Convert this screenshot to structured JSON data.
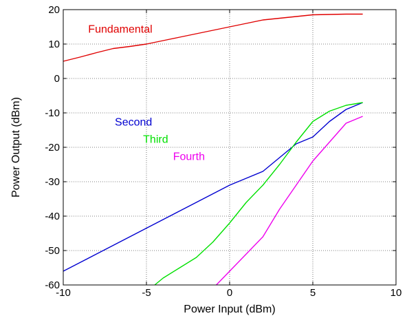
{
  "chart_data": {
    "type": "line",
    "title": "",
    "xlabel": "Power Input (dBm)",
    "ylabel": "Power Output (dBm)",
    "xlim": [
      -10,
      10
    ],
    "ylim": [
      -60,
      20
    ],
    "xticks": [
      -10,
      -5,
      0,
      5,
      10
    ],
    "yticks": [
      -60,
      -50,
      -40,
      -30,
      -20,
      -10,
      0,
      10,
      20
    ],
    "xtick_labels": [
      "-10",
      "-5",
      "0",
      "5",
      "10"
    ],
    "ytick_labels": [
      "-60",
      "-50",
      "-40",
      "-30",
      "-20",
      "-10",
      "0",
      "10",
      "20"
    ],
    "grid": true,
    "grid_style": "dotted",
    "legend": "inline labels",
    "series": [
      {
        "name": "Fundamental",
        "color": "#e00000",
        "label_at": [
          -8.5,
          14.5
        ],
        "x": [
          -10,
          -9,
          -8,
          -7,
          -6,
          -5,
          -4,
          -3,
          -2,
          -1,
          0,
          1,
          2,
          3,
          4,
          5,
          6,
          7,
          8
        ],
        "y": [
          5,
          6.2,
          7.5,
          8.7,
          9.3,
          10,
          11,
          12,
          13,
          14,
          15,
          16,
          17,
          17.5,
          18,
          18.5,
          18.6,
          18.7,
          18.7
        ]
      },
      {
        "name": "Second",
        "color": "#0000d0",
        "label_at": [
          -6.9,
          -12.5
        ],
        "x": [
          -10,
          -9,
          -8,
          -7,
          -6,
          -5,
          -4,
          -3,
          -2,
          -1,
          0,
          1,
          2,
          3,
          4,
          5,
          6,
          7,
          8
        ],
        "y": [
          -56,
          -53.5,
          -51,
          -48.5,
          -46,
          -43.5,
          -41,
          -38.5,
          -36,
          -33.5,
          -31,
          -29,
          -27,
          -23,
          -19,
          -17,
          -12.5,
          -9,
          -7
        ]
      },
      {
        "name": "Third",
        "color": "#00e000",
        "label_at": [
          -5.2,
          -17.5
        ],
        "x": [
          -4.5,
          -4,
          -3,
          -2,
          -1,
          0,
          1,
          2,
          3,
          4,
          5,
          6,
          7,
          8
        ],
        "y": [
          -60,
          -58,
          -55,
          -52,
          -47.5,
          -42,
          -36,
          -31,
          -25,
          -18.5,
          -12.5,
          -9.5,
          -7.8,
          -7
        ]
      },
      {
        "name": "Fourth",
        "color": "#ee00ee",
        "label_at": [
          -3.4,
          -22.5
        ],
        "x": [
          -0.8,
          0,
          1,
          2,
          3,
          4,
          5,
          6,
          7,
          8
        ],
        "y": [
          -60,
          -56,
          -51,
          -46,
          -38,
          -31,
          -24,
          -18.5,
          -13,
          -11
        ]
      }
    ]
  }
}
